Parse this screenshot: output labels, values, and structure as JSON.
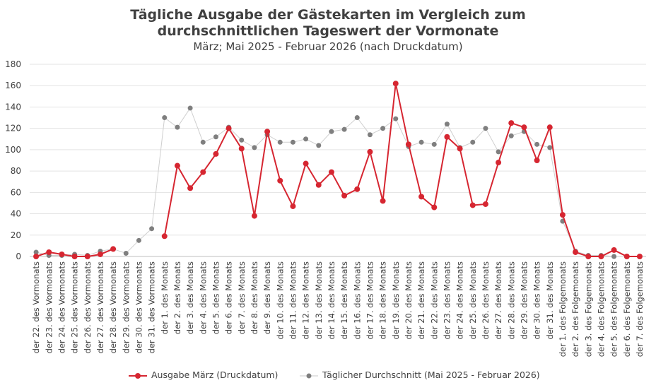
{
  "chart_data": {
    "type": "line",
    "title_line1": "Tägliche Ausgabe der Gästekarten im Vergleich zum",
    "title_line2": "durchschnittlichen Tageswert der Vormonate",
    "subtitle": "März; Mai 2025 - Februar 2026 (nach Druckdatum)",
    "ylim": [
      0,
      180
    ],
    "yticks": [
      0,
      20,
      40,
      60,
      80,
      100,
      120,
      140,
      160,
      180
    ],
    "grid": true,
    "legend_position": "bottom",
    "categories": [
      "der 22. des Vormonats",
      "der 23. des Vormonats",
      "der 24. des Vormonats",
      "der 25. des Vormonats",
      "der 26. des Vormonats",
      "der 27. des Vormonats",
      "der 28. des Vormonats",
      "der 29. des Vormonats",
      "der 30. des Vormonats",
      "der 31. des Vormonats",
      "der 1. des Monats",
      "der 2. des Monats",
      "der 3. des Monats",
      "der 4. des Monats",
      "der 5. des Monats",
      "der 6. des Monats",
      "der 7. des Monats",
      "der 8. des Monats",
      "der 9. des Monats",
      "der 10. des Monats",
      "der 11. des Monats",
      "der 12. des Monats",
      "der 13. des Monats",
      "der 14. des Monats",
      "der 15. des Monats",
      "der 16. des Monats",
      "der 17. des Monats",
      "der 18. des Monats",
      "der 19. des Monats",
      "der 20. des Monats",
      "der 21. des Monats",
      "der 22. des Monats",
      "der 23. des Monats",
      "der 24. des Monats",
      "der 25. des Monats",
      "der 26. des Monats",
      "der 27. des Monats",
      "der 28. des Monats",
      "der 29. des Monats",
      "der 30. des Monats",
      "der 31. des Monats",
      "der 1. des Folgemonats",
      "der 2. des Folgemonats",
      "der 3. des Folgemonats",
      "der 4. des Folgemonats",
      "der 5. des Folgemonats",
      "der 6. des Folgemonats",
      "der 7. des Folgemonats"
    ],
    "series": [
      {
        "name": "Ausgabe März (Druckdatum)",
        "color": "#d62631",
        "values": [
          0,
          4,
          2,
          0,
          0,
          2,
          7,
          null,
          null,
          null,
          19,
          85,
          64,
          79,
          96,
          120,
          101,
          38,
          117,
          71,
          47,
          87,
          67,
          79,
          57,
          63,
          98,
          52,
          162,
          105,
          56,
          46,
          112,
          101,
          48,
          49,
          88,
          125,
          121,
          90,
          121,
          39,
          4,
          0,
          0,
          6,
          0,
          0
        ]
      },
      {
        "name": "Täglicher Durchschnitt (Mai 2025 - Februar 2026)",
        "color": "#7f7f7f",
        "values": [
          4,
          1,
          1,
          2,
          1,
          5,
          7,
          3,
          15,
          26,
          130,
          121,
          139,
          107,
          112,
          121,
          109,
          102,
          114,
          107,
          107,
          110,
          104,
          117,
          119,
          130,
          114,
          120,
          129,
          103,
          107,
          105,
          124,
          102,
          107,
          120,
          98,
          113,
          117,
          105,
          102,
          33,
          5,
          1,
          1,
          0,
          0,
          0
        ]
      }
    ]
  }
}
